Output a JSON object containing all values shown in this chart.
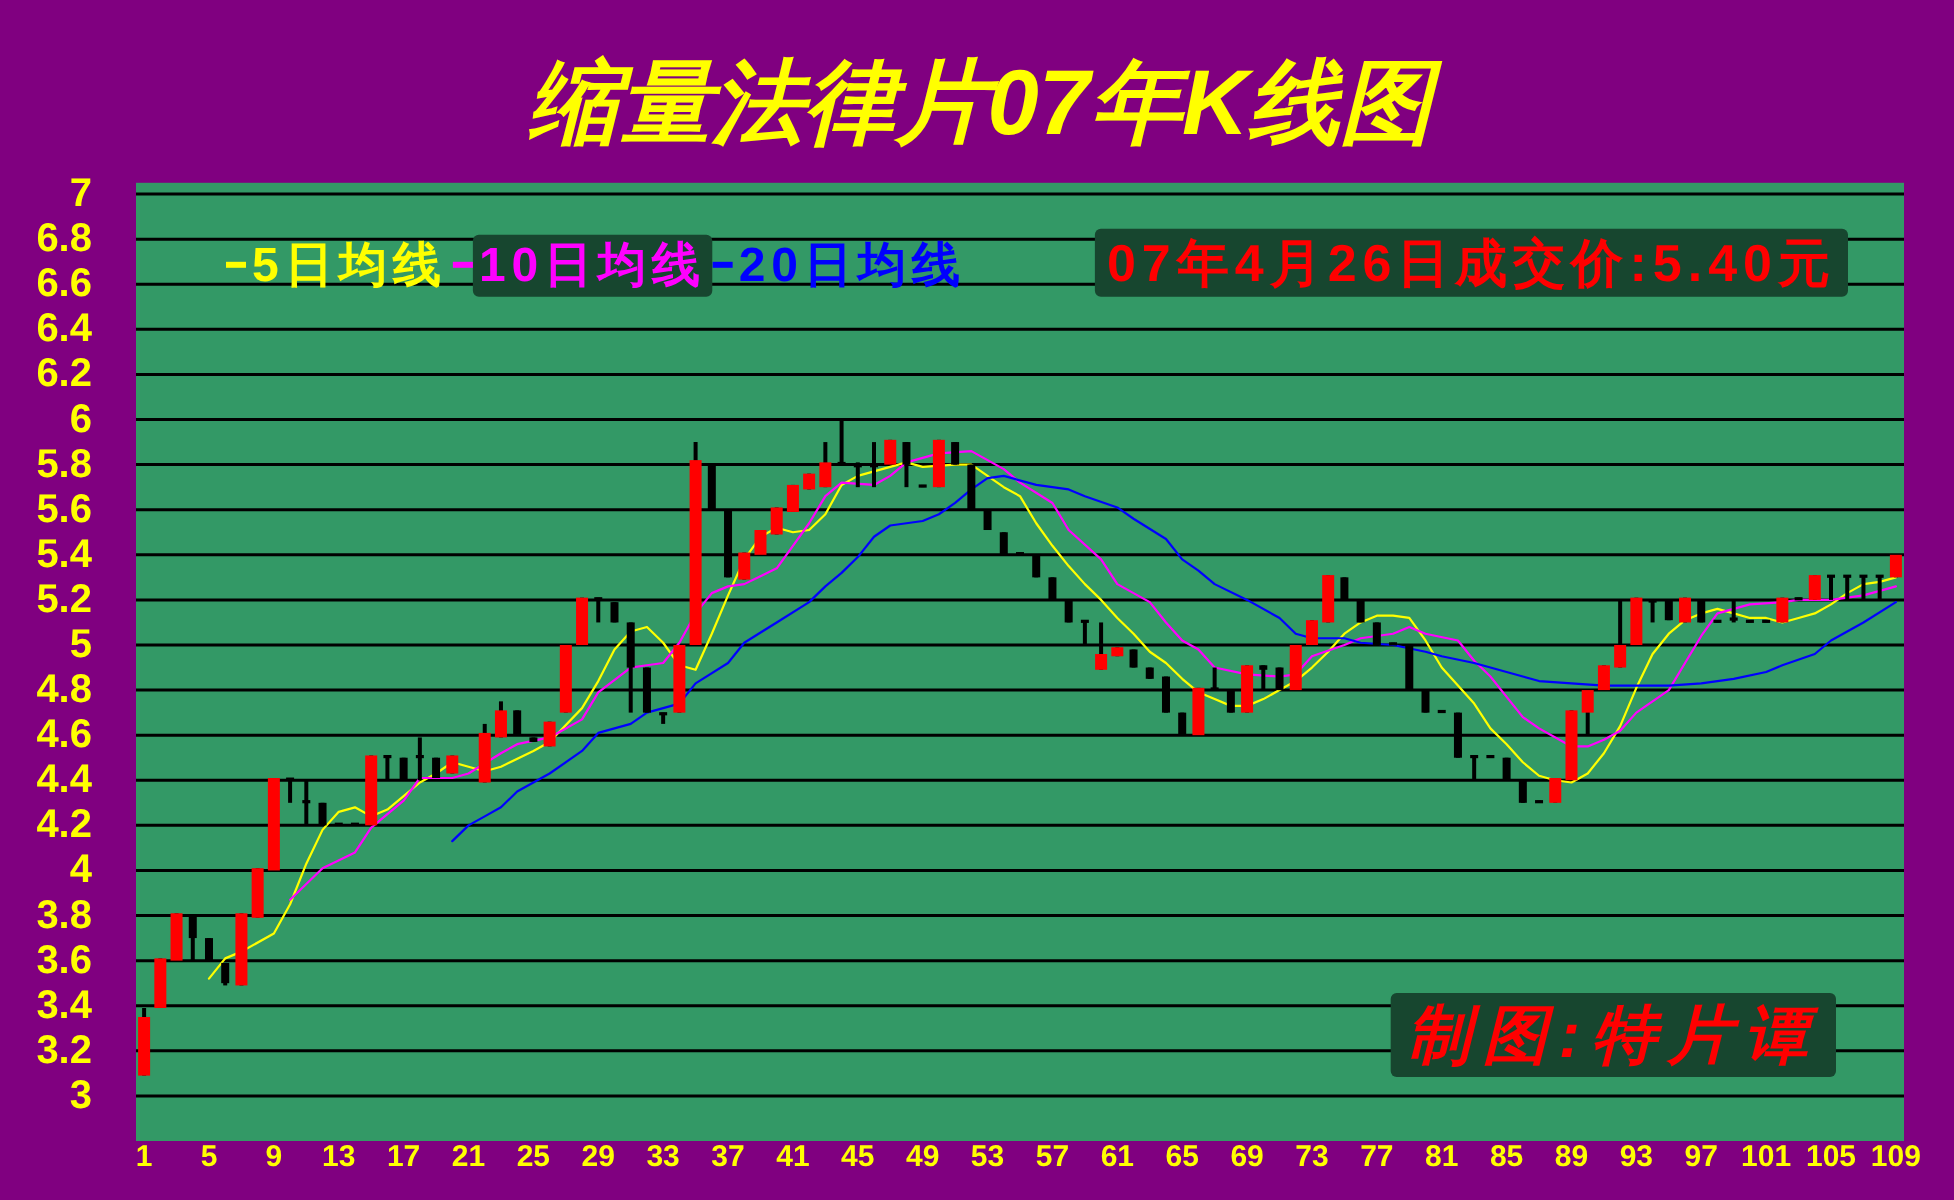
{
  "chart_data": {
    "type": "candlestick",
    "title": "缩量法律片07年K线图",
    "x": [
      1,
      2,
      3,
      4,
      5,
      6,
      7,
      8,
      9,
      10,
      11,
      12,
      13,
      14,
      15,
      16,
      17,
      18,
      19,
      20,
      22,
      23,
      24,
      25,
      26,
      27,
      28,
      29,
      30,
      31,
      32,
      33,
      34,
      35,
      36,
      37,
      38,
      39,
      40,
      41,
      42,
      43,
      44,
      45,
      46,
      47,
      48,
      49,
      50,
      51,
      52,
      53,
      54,
      55,
      56,
      57,
      58,
      59,
      60,
      61,
      62,
      63,
      64,
      65,
      66,
      67,
      68,
      69,
      70,
      71,
      72,
      73,
      74,
      75,
      76,
      77,
      78,
      79,
      80,
      81,
      82,
      83,
      84,
      85,
      86,
      87,
      88,
      89,
      90,
      91,
      92,
      93,
      94,
      95,
      96,
      97,
      98,
      99,
      100,
      101,
      102,
      103,
      104,
      105,
      106,
      107,
      108,
      109
    ],
    "ohlc": [
      [
        3.09,
        3.39,
        3.09,
        3.35
      ],
      [
        3.39,
        3.61,
        3.39,
        3.61
      ],
      [
        3.6,
        3.81,
        3.6,
        3.81
      ],
      [
        3.8,
        3.8,
        3.6,
        3.7
      ],
      [
        3.7,
        3.7,
        3.6,
        3.6
      ],
      [
        3.59,
        3.59,
        3.49,
        3.5
      ],
      [
        3.49,
        3.81,
        3.49,
        3.81
      ],
      [
        3.79,
        4.01,
        3.79,
        4.01
      ],
      [
        4.0,
        4.41,
        4.0,
        4.41
      ],
      [
        4.41,
        4.41,
        4.3,
        4.4
      ],
      [
        4.31,
        4.4,
        4.2,
        4.3
      ],
      [
        4.3,
        4.3,
        4.2,
        4.2
      ],
      [
        4.21,
        4.21,
        4.2,
        4.2
      ],
      [
        4.21,
        4.21,
        4.2,
        4.2
      ],
      [
        4.2,
        4.51,
        4.2,
        4.51
      ],
      [
        4.51,
        4.51,
        4.4,
        4.5
      ],
      [
        4.5,
        4.5,
        4.4,
        4.4
      ],
      [
        4.51,
        4.59,
        4.4,
        4.5
      ],
      [
        4.5,
        4.5,
        4.41,
        4.41
      ],
      [
        4.43,
        4.51,
        4.43,
        4.51
      ],
      [
        4.39,
        4.65,
        4.39,
        4.61
      ],
      [
        4.59,
        4.75,
        4.59,
        4.71
      ],
      [
        4.71,
        4.71,
        4.6,
        4.6
      ],
      [
        4.59,
        4.59,
        4.57,
        4.57
      ],
      [
        4.55,
        4.66,
        4.55,
        4.66
      ],
      [
        4.7,
        5.0,
        4.7,
        5.0
      ],
      [
        5.0,
        5.21,
        5.0,
        5.21
      ],
      [
        5.21,
        5.21,
        5.1,
        5.2
      ],
      [
        5.19,
        5.19,
        5.1,
        5.1
      ],
      [
        5.1,
        5.1,
        4.7,
        4.9
      ],
      [
        4.9,
        4.9,
        4.7,
        4.7
      ],
      [
        4.7,
        4.7,
        4.65,
        4.69
      ],
      [
        4.7,
        5.0,
        4.7,
        5.0
      ],
      [
        5.0,
        5.9,
        5.0,
        5.82
      ],
      [
        5.8,
        5.8,
        5.6,
        5.6
      ],
      [
        5.6,
        5.6,
        5.3,
        5.3
      ],
      [
        5.29,
        5.41,
        5.29,
        5.41
      ],
      [
        5.4,
        5.51,
        5.4,
        5.51
      ],
      [
        5.49,
        5.61,
        5.49,
        5.61
      ],
      [
        5.59,
        5.71,
        5.59,
        5.71
      ],
      [
        5.69,
        5.76,
        5.69,
        5.76
      ],
      [
        5.7,
        5.9,
        5.7,
        5.81
      ],
      [
        5.81,
        6.0,
        5.8,
        5.8
      ],
      [
        5.8,
        5.81,
        5.7,
        5.79
      ],
      [
        5.8,
        5.9,
        5.7,
        5.79
      ],
      [
        5.8,
        5.91,
        5.8,
        5.91
      ],
      [
        5.9,
        5.9,
        5.7,
        5.8
      ],
      [
        5.71,
        5.71,
        5.7,
        5.7
      ],
      [
        5.7,
        5.91,
        5.7,
        5.91
      ],
      [
        5.9,
        5.9,
        5.8,
        5.8
      ],
      [
        5.8,
        5.8,
        5.6,
        5.6
      ],
      [
        5.6,
        5.6,
        5.51,
        5.51
      ],
      [
        5.5,
        5.5,
        5.4,
        5.4
      ],
      [
        5.41,
        5.41,
        5.4,
        5.4
      ],
      [
        5.4,
        5.4,
        5.3,
        5.3
      ],
      [
        5.3,
        5.3,
        5.2,
        5.2
      ],
      [
        5.2,
        5.2,
        5.1,
        5.1
      ],
      [
        5.11,
        5.11,
        5.0,
        5.1
      ],
      [
        4.89,
        5.1,
        4.89,
        4.96
      ],
      [
        4.95,
        4.99,
        4.95,
        4.99
      ],
      [
        4.98,
        4.98,
        4.9,
        4.9
      ],
      [
        4.9,
        4.9,
        4.85,
        4.85
      ],
      [
        4.86,
        4.86,
        4.7,
        4.7
      ],
      [
        4.7,
        4.7,
        4.6,
        4.6
      ],
      [
        4.6,
        4.81,
        4.6,
        4.81
      ],
      [
        4.81,
        4.9,
        4.8,
        4.8
      ],
      [
        4.8,
        4.8,
        4.7,
        4.7
      ],
      [
        4.7,
        4.91,
        4.7,
        4.91
      ],
      [
        4.91,
        4.91,
        4.8,
        4.89
      ],
      [
        4.9,
        4.9,
        4.8,
        4.8
      ],
      [
        4.8,
        5.0,
        4.8,
        5.0
      ],
      [
        5.0,
        5.11,
        5.0,
        5.11
      ],
      [
        5.1,
        5.31,
        5.1,
        5.31
      ],
      [
        5.3,
        5.3,
        5.2,
        5.2
      ],
      [
        5.2,
        5.2,
        5.1,
        5.1
      ],
      [
        5.1,
        5.1,
        5.0,
        5.0
      ],
      [
        5.01,
        5.01,
        5.0,
        5.0
      ],
      [
        5.0,
        5.0,
        4.8,
        4.8
      ],
      [
        4.8,
        4.8,
        4.7,
        4.7
      ],
      [
        4.71,
        4.71,
        4.7,
        4.7
      ],
      [
        4.7,
        4.7,
        4.5,
        4.5
      ],
      [
        4.51,
        4.51,
        4.4,
        4.5
      ],
      [
        4.51,
        4.51,
        4.5,
        4.5
      ],
      [
        4.5,
        4.5,
        4.4,
        4.4
      ],
      [
        4.4,
        4.4,
        4.3,
        4.3
      ],
      [
        4.31,
        4.31,
        4.3,
        4.3
      ],
      [
        4.3,
        4.41,
        4.3,
        4.41
      ],
      [
        4.4,
        4.71,
        4.4,
        4.71
      ],
      [
        4.7,
        4.8,
        4.6,
        4.8
      ],
      [
        4.8,
        4.91,
        4.8,
        4.91
      ],
      [
        4.9,
        5.2,
        4.9,
        5.0
      ],
      [
        5.0,
        5.21,
        5.0,
        5.21
      ],
      [
        5.2,
        5.2,
        5.1,
        5.19
      ],
      [
        5.2,
        5.2,
        5.11,
        5.11
      ],
      [
        5.1,
        5.21,
        5.1,
        5.21
      ],
      [
        5.2,
        5.2,
        5.1,
        5.1
      ],
      [
        5.11,
        5.11,
        5.1,
        5.1
      ],
      [
        5.12,
        5.2,
        5.1,
        5.11
      ],
      [
        5.11,
        5.11,
        5.1,
        5.1
      ],
      [
        5.11,
        5.11,
        5.1,
        5.1
      ],
      [
        5.1,
        5.21,
        5.1,
        5.21
      ],
      [
        5.21,
        5.21,
        5.2,
        5.2
      ],
      [
        5.2,
        5.31,
        5.2,
        5.31
      ],
      [
        5.31,
        5.31,
        5.2,
        5.3
      ],
      [
        5.31,
        5.31,
        5.2,
        5.3
      ],
      [
        5.31,
        5.31,
        5.2,
        5.3
      ],
      [
        5.31,
        5.31,
        5.2,
        5.3
      ],
      [
        5.3,
        5.4,
        5.3,
        5.4
      ]
    ],
    "colors": [
      "#ff0000",
      "#ff0000",
      "#ff0000",
      "#000000",
      "#000000",
      "#000000",
      "#ff0000",
      "#ff0000",
      "#ff0000",
      "#000000",
      "#000000",
      "#000000",
      "#000000",
      "#000000",
      "#ff0000",
      "#000000",
      "#000000",
      "#000000",
      "#000000",
      "#ff0000",
      "#ff0000",
      "#ff0000",
      "#000000",
      "#000000",
      "#ff0000",
      "#ff0000",
      "#ff0000",
      "#000000",
      "#000000",
      "#000000",
      "#000000",
      "#000000",
      "#ff0000",
      "#ff0000",
      "#000000",
      "#000000",
      "#ff0000",
      "#ff0000",
      "#ff0000",
      "#ff0000",
      "#ff0000",
      "#ff0000",
      "#000000",
      "#000000",
      "#000000",
      "#ff0000",
      "#000000",
      "#000000",
      "#ff0000",
      "#000000",
      "#000000",
      "#000000",
      "#000000",
      "#000000",
      "#000000",
      "#000000",
      "#000000",
      "#000000",
      "#ff0000",
      "#ff0000",
      "#000000",
      "#000000",
      "#000000",
      "#000000",
      "#ff0000",
      "#000000",
      "#000000",
      "#ff0000",
      "#000000",
      "#000000",
      "#ff0000",
      "#ff0000",
      "#ff0000",
      "#000000",
      "#000000",
      "#000000",
      "#000000",
      "#000000",
      "#000000",
      "#000000",
      "#000000",
      "#000000",
      "#000000",
      "#000000",
      "#000000",
      "#000000",
      "#ff0000",
      "#ff0000",
      "#ff0000",
      "#ff0000",
      "#ff0000",
      "#ff0000",
      "#000000",
      "#000000",
      "#ff0000",
      "#000000",
      "#000000",
      "#000000",
      "#000000",
      "#000000",
      "#ff0000",
      "#000000",
      "#ff0000",
      "#000000",
      "#000000",
      "#000000",
      "#000000",
      "#ff0000"
    ],
    "series": [
      {
        "name": "5日均线",
        "type": "line",
        "color": "#ffff00",
        "x": [
          5,
          6,
          7,
          9,
          10,
          11,
          12,
          13,
          14,
          15,
          16,
          17,
          18,
          19,
          20,
          21,
          22,
          23,
          25,
          26,
          28,
          29,
          30,
          31,
          32,
          33,
          34,
          35,
          36,
          37,
          38,
          39,
          40,
          41,
          42,
          43,
          44,
          45,
          47,
          48,
          49,
          51,
          52,
          53,
          54,
          55,
          56,
          57,
          58,
          59,
          60,
          61,
          62,
          63,
          64,
          65,
          66,
          67,
          68,
          69,
          70,
          71,
          72,
          73,
          74,
          75,
          76,
          77,
          78,
          79,
          80,
          81,
          82,
          83,
          84,
          85,
          86,
          87,
          88,
          89,
          90,
          91,
          92,
          93,
          94,
          95,
          96,
          97,
          98,
          99,
          100,
          101,
          102,
          103,
          104,
          105,
          106,
          107,
          108,
          109
        ],
        "values": [
          3.52,
          3.61,
          3.64,
          3.72,
          3.85,
          4.03,
          4.18,
          4.26,
          4.28,
          4.24,
          4.27,
          4.33,
          4.39,
          4.43,
          4.48,
          4.46,
          4.44,
          4.46,
          4.53,
          4.57,
          4.72,
          4.84,
          4.98,
          5.06,
          5.08,
          5.01,
          4.91,
          4.89,
          5.05,
          5.22,
          5.38,
          5.48,
          5.52,
          5.5,
          5.51,
          5.58,
          5.71,
          5.75,
          5.79,
          5.81,
          5.79,
          5.8,
          5.8,
          5.75,
          5.7,
          5.66,
          5.54,
          5.44,
          5.35,
          5.27,
          5.2,
          5.12,
          5.05,
          4.97,
          4.92,
          4.85,
          4.79,
          4.76,
          4.73,
          4.73,
          4.76,
          4.8,
          4.84,
          4.9,
          4.97,
          5.05,
          5.1,
          5.13,
          5.13,
          5.12,
          5.02,
          4.9,
          4.82,
          4.74,
          4.63,
          4.56,
          4.48,
          4.42,
          4.4,
          4.39,
          4.43,
          4.52,
          4.64,
          4.81,
          4.96,
          5.05,
          5.11,
          5.14,
          5.16,
          5.14,
          5.12,
          5.12,
          5.1,
          5.12,
          5.14,
          5.18,
          5.23,
          5.27,
          5.28,
          5.3
        ]
      },
      {
        "name": "10日均线",
        "type": "line",
        "color": "#ff00ff",
        "x": [
          10,
          12,
          14,
          15,
          17,
          18,
          20,
          21,
          23,
          24,
          26,
          28,
          29,
          31,
          32,
          33,
          34,
          35,
          36,
          37,
          38,
          40,
          41,
          42,
          43,
          44,
          46,
          47,
          48,
          50,
          52,
          54,
          55,
          57,
          58,
          60,
          61,
          63,
          64,
          65,
          66,
          67,
          69,
          71,
          72,
          73,
          75,
          76,
          78,
          79,
          80,
          82,
          83,
          84,
          85,
          86,
          87,
          89,
          90,
          91,
          92,
          93,
          95,
          96,
          97,
          98,
          100,
          102,
          103,
          105,
          107,
          108,
          109
        ],
        "values": [
          3.87,
          4.01,
          4.08,
          4.19,
          4.31,
          4.41,
          4.41,
          4.43,
          4.52,
          4.56,
          4.59,
          4.67,
          4.79,
          4.9,
          4.91,
          4.92,
          5.01,
          5.14,
          5.23,
          5.26,
          5.27,
          5.34,
          5.44,
          5.54,
          5.66,
          5.72,
          5.71,
          5.75,
          5.81,
          5.85,
          5.86,
          5.78,
          5.72,
          5.63,
          5.51,
          5.38,
          5.27,
          5.19,
          5.1,
          5.02,
          4.98,
          4.9,
          4.87,
          4.86,
          4.87,
          4.95,
          5.0,
          5.03,
          5.05,
          5.08,
          5.05,
          5.02,
          4.93,
          4.86,
          4.77,
          4.68,
          4.63,
          4.55,
          4.55,
          4.58,
          4.62,
          4.7,
          4.8,
          4.92,
          5.04,
          5.14,
          5.18,
          5.19,
          5.2,
          5.2,
          5.22,
          5.24,
          5.26
        ]
      },
      {
        "name": "20日均线",
        "type": "line",
        "color": "#0000ff",
        "x": [
          20,
          21,
          22,
          23,
          24,
          26,
          28,
          29,
          31,
          32,
          34,
          35,
          37,
          38,
          40,
          42,
          43,
          44,
          45,
          46,
          47,
          49,
          50,
          51,
          52,
          53,
          54,
          56,
          58,
          59,
          61,
          62,
          64,
          65,
          66,
          67,
          69,
          71,
          72,
          73,
          75,
          76,
          78,
          80,
          81,
          83,
          85,
          86,
          87,
          89,
          91,
          93,
          95,
          97,
          99,
          101,
          102,
          104,
          105,
          107,
          109
        ],
        "values": [
          4.13,
          4.2,
          4.24,
          4.28,
          4.35,
          4.43,
          4.53,
          4.61,
          4.65,
          4.7,
          4.74,
          4.83,
          4.92,
          5.01,
          5.1,
          5.19,
          5.26,
          5.32,
          5.39,
          5.48,
          5.53,
          5.55,
          5.58,
          5.63,
          5.69,
          5.74,
          5.75,
          5.71,
          5.69,
          5.66,
          5.61,
          5.56,
          5.47,
          5.38,
          5.33,
          5.27,
          5.2,
          5.12,
          5.05,
          5.03,
          5.03,
          5.01,
          5.0,
          4.97,
          4.95,
          4.92,
          4.88,
          4.86,
          4.84,
          4.83,
          4.82,
          4.82,
          4.82,
          4.83,
          4.85,
          4.88,
          4.91,
          4.96,
          5.02,
          5.1,
          5.19
        ]
      }
    ],
    "xlim": [
      0.5,
      109.5
    ],
    "xticks": [
      1,
      5,
      9,
      13,
      17,
      21,
      25,
      29,
      33,
      37,
      41,
      45,
      49,
      53,
      57,
      61,
      65,
      69,
      73,
      77,
      81,
      85,
      89,
      93,
      97,
      101,
      105,
      109
    ],
    "ylim": [
      2.8,
      7.05
    ],
    "yticks": [
      3,
      3.2,
      3.4,
      3.6,
      3.8,
      4,
      4.2,
      4.4,
      4.6,
      4.8,
      5,
      5.2,
      5.4,
      5.6,
      5.8,
      6,
      6.2,
      6.4,
      6.6,
      6.8,
      7
    ],
    "grid": "y",
    "legend": "top left",
    "annotations": [
      "07年4月26日成交价:5.40元",
      "制图:特片谭"
    ]
  }
}
